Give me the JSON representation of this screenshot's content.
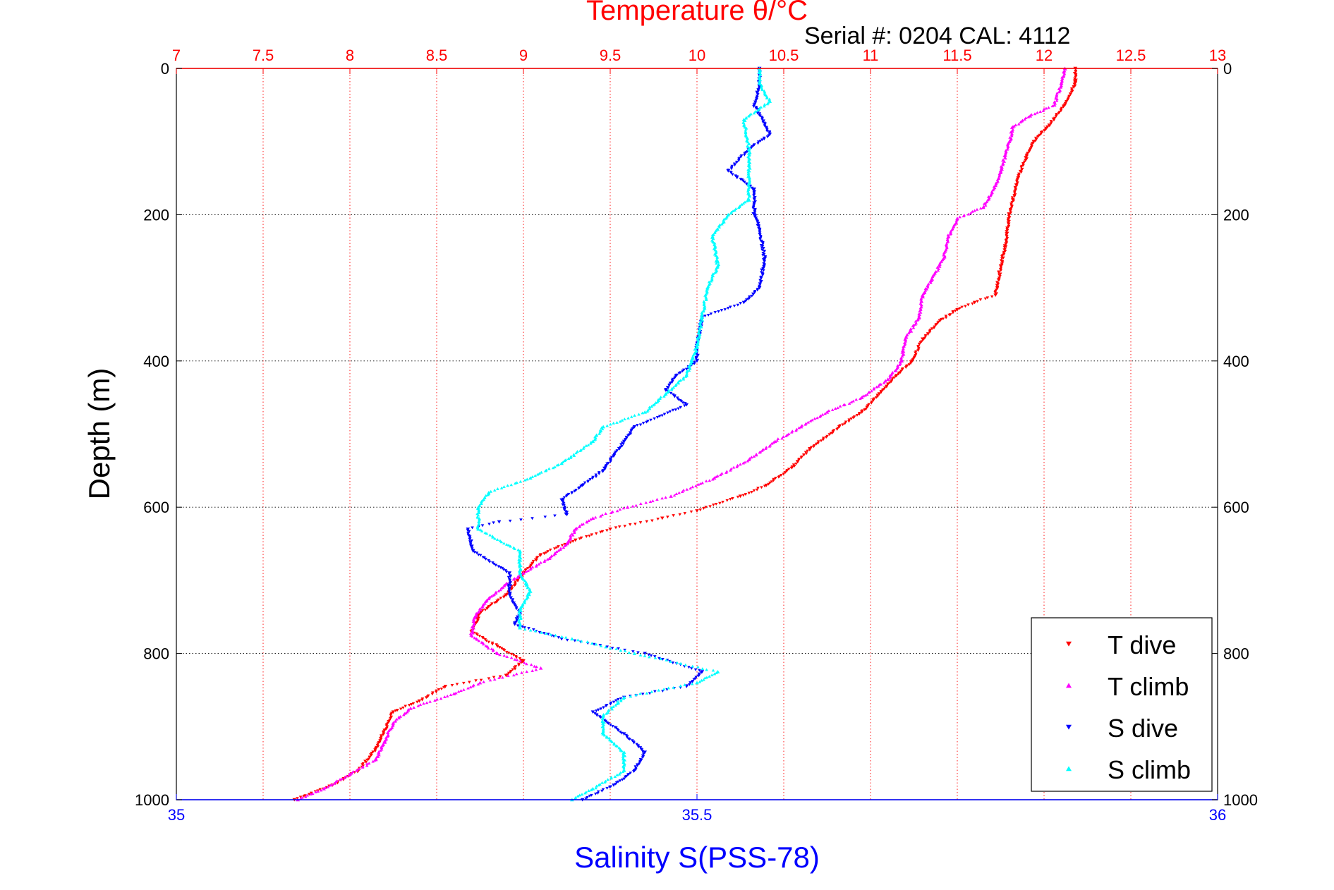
{
  "header": {
    "serial_label": "Serial #: 0204  CAL: 4112"
  },
  "chart_data": {
    "type": "scatter",
    "title": "Temperature θ/°C",
    "ylabel": "Depth (m)",
    "xlabel": "Salinity S(PSS-78)",
    "y_reversed": true,
    "ylim": [
      0,
      1000
    ],
    "y_ticks": [
      "0",
      "200",
      "400",
      "600",
      "800",
      "1000"
    ],
    "temperature_axis": {
      "position": "top",
      "lim": [
        7,
        13
      ],
      "ticks": [
        "7",
        "7.5",
        "8",
        "8.5",
        "9",
        "9.5",
        "10",
        "10.5",
        "11",
        "11.5",
        "12",
        "12.5",
        "13"
      ],
      "color": "#ff0000",
      "grid": true
    },
    "salinity_axis": {
      "position": "bottom",
      "lim": [
        35,
        36
      ],
      "ticks": [
        "35",
        "35.5",
        "36"
      ],
      "color": "#0000ff"
    },
    "grid": true,
    "legend_position": "bottom-right",
    "series": [
      {
        "name": "T dive",
        "axis": "temperature",
        "color": "#ff0000",
        "marker": "triangle-down",
        "points": [
          [
            12.18,
            0
          ],
          [
            12.18,
            20
          ],
          [
            12.12,
            50
          ],
          [
            12.02,
            80
          ],
          [
            11.94,
            100
          ],
          [
            11.9,
            120
          ],
          [
            11.85,
            150
          ],
          [
            11.82,
            180
          ],
          [
            11.8,
            200
          ],
          [
            11.78,
            240
          ],
          [
            11.75,
            270
          ],
          [
            11.73,
            300
          ],
          [
            11.72,
            310
          ],
          [
            11.6,
            320
          ],
          [
            11.5,
            330
          ],
          [
            11.4,
            345
          ],
          [
            11.3,
            370
          ],
          [
            11.24,
            400
          ],
          [
            11.15,
            420
          ],
          [
            11.05,
            445
          ],
          [
            10.95,
            470
          ],
          [
            10.82,
            490
          ],
          [
            10.65,
            520
          ],
          [
            10.55,
            545
          ],
          [
            10.4,
            570
          ],
          [
            10.25,
            585
          ],
          [
            10.0,
            605
          ],
          [
            9.8,
            615
          ],
          [
            9.5,
            630
          ],
          [
            9.3,
            645
          ],
          [
            9.1,
            665
          ],
          [
            9.0,
            690
          ],
          [
            8.9,
            720
          ],
          [
            8.75,
            745
          ],
          [
            8.7,
            770
          ],
          [
            8.85,
            790
          ],
          [
            9.0,
            810
          ],
          [
            8.9,
            830
          ],
          [
            8.55,
            845
          ],
          [
            8.4,
            865
          ],
          [
            8.25,
            880
          ],
          [
            8.2,
            905
          ],
          [
            8.15,
            930
          ],
          [
            8.05,
            960
          ],
          [
            7.9,
            980
          ],
          [
            7.68,
            1000
          ]
        ]
      },
      {
        "name": "T climb",
        "axis": "temperature",
        "color": "#ff00ff",
        "marker": "triangle-up",
        "points": [
          [
            12.12,
            0
          ],
          [
            12.1,
            20
          ],
          [
            12.06,
            50
          ],
          [
            11.92,
            65
          ],
          [
            11.82,
            80
          ],
          [
            11.8,
            100
          ],
          [
            11.75,
            140
          ],
          [
            11.72,
            160
          ],
          [
            11.65,
            190
          ],
          [
            11.5,
            205
          ],
          [
            11.45,
            230
          ],
          [
            11.42,
            260
          ],
          [
            11.35,
            290
          ],
          [
            11.3,
            310
          ],
          [
            11.28,
            340
          ],
          [
            11.2,
            370
          ],
          [
            11.18,
            400
          ],
          [
            11.1,
            425
          ],
          [
            10.95,
            450
          ],
          [
            10.75,
            470
          ],
          [
            10.6,
            490
          ],
          [
            10.45,
            510
          ],
          [
            10.3,
            535
          ],
          [
            10.1,
            560
          ],
          [
            9.85,
            585
          ],
          [
            9.6,
            600
          ],
          [
            9.4,
            615
          ],
          [
            9.3,
            630
          ],
          [
            9.25,
            650
          ],
          [
            9.15,
            670
          ],
          [
            9.0,
            690
          ],
          [
            8.9,
            705
          ],
          [
            8.8,
            725
          ],
          [
            8.72,
            750
          ],
          [
            8.7,
            775
          ],
          [
            8.85,
            800
          ],
          [
            9.1,
            820
          ],
          [
            8.75,
            840
          ],
          [
            8.6,
            855
          ],
          [
            8.35,
            875
          ],
          [
            8.25,
            895
          ],
          [
            8.2,
            920
          ],
          [
            8.15,
            945
          ],
          [
            8.0,
            965
          ],
          [
            7.85,
            985
          ],
          [
            7.7,
            1000
          ]
        ]
      },
      {
        "name": "S dive",
        "axis": "salinity",
        "color": "#0000ff",
        "marker": "triangle-down",
        "points": [
          [
            35.56,
            0
          ],
          [
            35.56,
            20
          ],
          [
            35.555,
            50
          ],
          [
            35.57,
            90
          ],
          [
            35.55,
            110
          ],
          [
            35.53,
            140
          ],
          [
            35.555,
            165
          ],
          [
            35.555,
            200
          ],
          [
            35.56,
            220
          ],
          [
            35.565,
            260
          ],
          [
            35.56,
            300
          ],
          [
            35.545,
            320
          ],
          [
            35.505,
            340
          ],
          [
            35.5,
            380
          ],
          [
            35.5,
            400
          ],
          [
            35.48,
            420
          ],
          [
            35.47,
            440
          ],
          [
            35.49,
            460
          ],
          [
            35.44,
            490
          ],
          [
            35.43,
            510
          ],
          [
            35.42,
            530
          ],
          [
            35.41,
            550
          ],
          [
            35.39,
            570
          ],
          [
            35.37,
            590
          ],
          [
            35.375,
            610
          ],
          [
            35.31,
            620
          ],
          [
            35.28,
            630
          ],
          [
            35.285,
            660
          ],
          [
            35.32,
            690
          ],
          [
            35.32,
            720
          ],
          [
            35.33,
            745
          ],
          [
            35.325,
            760
          ],
          [
            35.37,
            780
          ],
          [
            35.45,
            800
          ],
          [
            35.505,
            825
          ],
          [
            35.49,
            845
          ],
          [
            35.43,
            860
          ],
          [
            35.4,
            880
          ],
          [
            35.43,
            910
          ],
          [
            35.45,
            935
          ],
          [
            35.44,
            960
          ],
          [
            35.42,
            980
          ],
          [
            35.39,
            1000
          ]
        ]
      },
      {
        "name": "S climb",
        "axis": "salinity",
        "color": "#00ffff",
        "marker": "triangle-up",
        "points": [
          [
            35.56,
            0
          ],
          [
            35.56,
            20
          ],
          [
            35.57,
            45
          ],
          [
            35.545,
            70
          ],
          [
            35.55,
            110
          ],
          [
            35.55,
            140
          ],
          [
            35.55,
            180
          ],
          [
            35.53,
            200
          ],
          [
            35.515,
            230
          ],
          [
            35.52,
            270
          ],
          [
            35.51,
            300
          ],
          [
            35.505,
            340
          ],
          [
            35.5,
            380
          ],
          [
            35.49,
            420
          ],
          [
            35.47,
            445
          ],
          [
            35.45,
            470
          ],
          [
            35.41,
            490
          ],
          [
            35.4,
            510
          ],
          [
            35.37,
            540
          ],
          [
            35.34,
            560
          ],
          [
            35.3,
            580
          ],
          [
            35.29,
            600
          ],
          [
            35.29,
            630
          ],
          [
            35.33,
            660
          ],
          [
            35.33,
            690
          ],
          [
            35.34,
            715
          ],
          [
            35.33,
            740
          ],
          [
            35.33,
            765
          ],
          [
            35.38,
            780
          ],
          [
            35.44,
            800
          ],
          [
            35.52,
            825
          ],
          [
            35.5,
            840
          ],
          [
            35.43,
            860
          ],
          [
            35.41,
            885
          ],
          [
            35.41,
            910
          ],
          [
            35.43,
            935
          ],
          [
            35.43,
            960
          ],
          [
            35.4,
            985
          ],
          [
            35.38,
            1000
          ]
        ]
      }
    ]
  }
}
